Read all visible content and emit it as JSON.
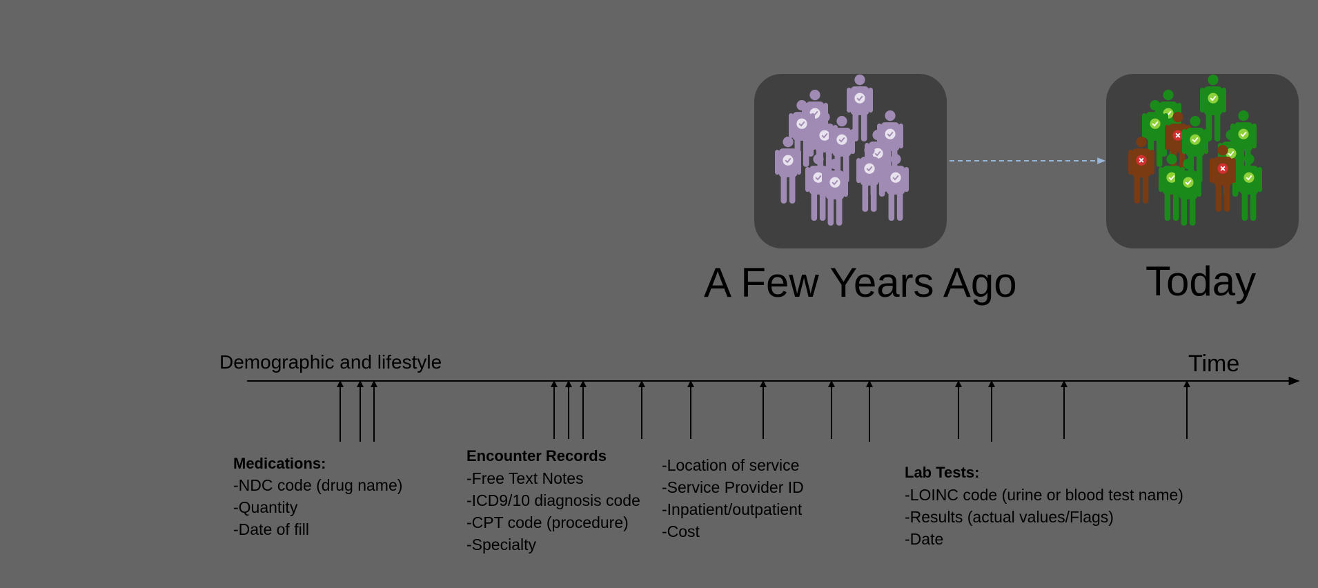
{
  "colors": {
    "background": "#656565",
    "panel": "#404040",
    "crowd_past": "#a08bb4",
    "crowd_healthy": "#1a8a1a",
    "crowd_sick": "#7a3a12",
    "check_mark": "#8ed13a",
    "cross_mark": "#d03030",
    "dashed_arrow": "#9ab6d6",
    "axis": "#000000"
  },
  "icons": {
    "past_people": "person-with-check-badge-icon",
    "today_people": "person-with-status-badge-icon"
  },
  "populations": {
    "past": {
      "caption": "A Few Years Ago",
      "people": [
        {
          "status": "check"
        },
        {
          "status": "check"
        },
        {
          "status": "check"
        },
        {
          "status": "check"
        },
        {
          "status": "check"
        },
        {
          "status": "check"
        },
        {
          "status": "check"
        },
        {
          "status": "check"
        },
        {
          "status": "check"
        },
        {
          "status": "check"
        },
        {
          "status": "check"
        },
        {
          "status": "check"
        }
      ]
    },
    "today": {
      "caption": "Today",
      "people": [
        {
          "status": "sick"
        },
        {
          "status": "healthy"
        },
        {
          "status": "healthy"
        },
        {
          "status": "sick"
        },
        {
          "status": "healthy"
        },
        {
          "status": "healthy"
        },
        {
          "status": "healthy"
        },
        {
          "status": "sick"
        },
        {
          "status": "healthy"
        },
        {
          "status": "healthy"
        },
        {
          "status": "healthy"
        },
        {
          "status": "healthy"
        }
      ]
    }
  },
  "timeline": {
    "start_label": "Demographic and lifestyle",
    "end_label": "Time",
    "event_count": 16
  },
  "record_groups": [
    {
      "title": "Medications:",
      "items": [
        "-NDC code (drug name)",
        "-Quantity",
        "-Date of fill"
      ]
    },
    {
      "title": "Encounter Records",
      "items": [
        "-Free Text Notes",
        "-ICD9/10 diagnosis code",
        "-CPT code (procedure)",
        "-Specialty"
      ]
    },
    {
      "title": "",
      "items": [
        "-Location of service",
        "-Service Provider ID",
        "-Inpatient/outpatient",
        "-Cost"
      ]
    },
    {
      "title": "Lab Tests:",
      "items": [
        "-LOINC code (urine or blood test name)",
        "-Results (actual values/Flags)",
        "-Date"
      ]
    }
  ]
}
